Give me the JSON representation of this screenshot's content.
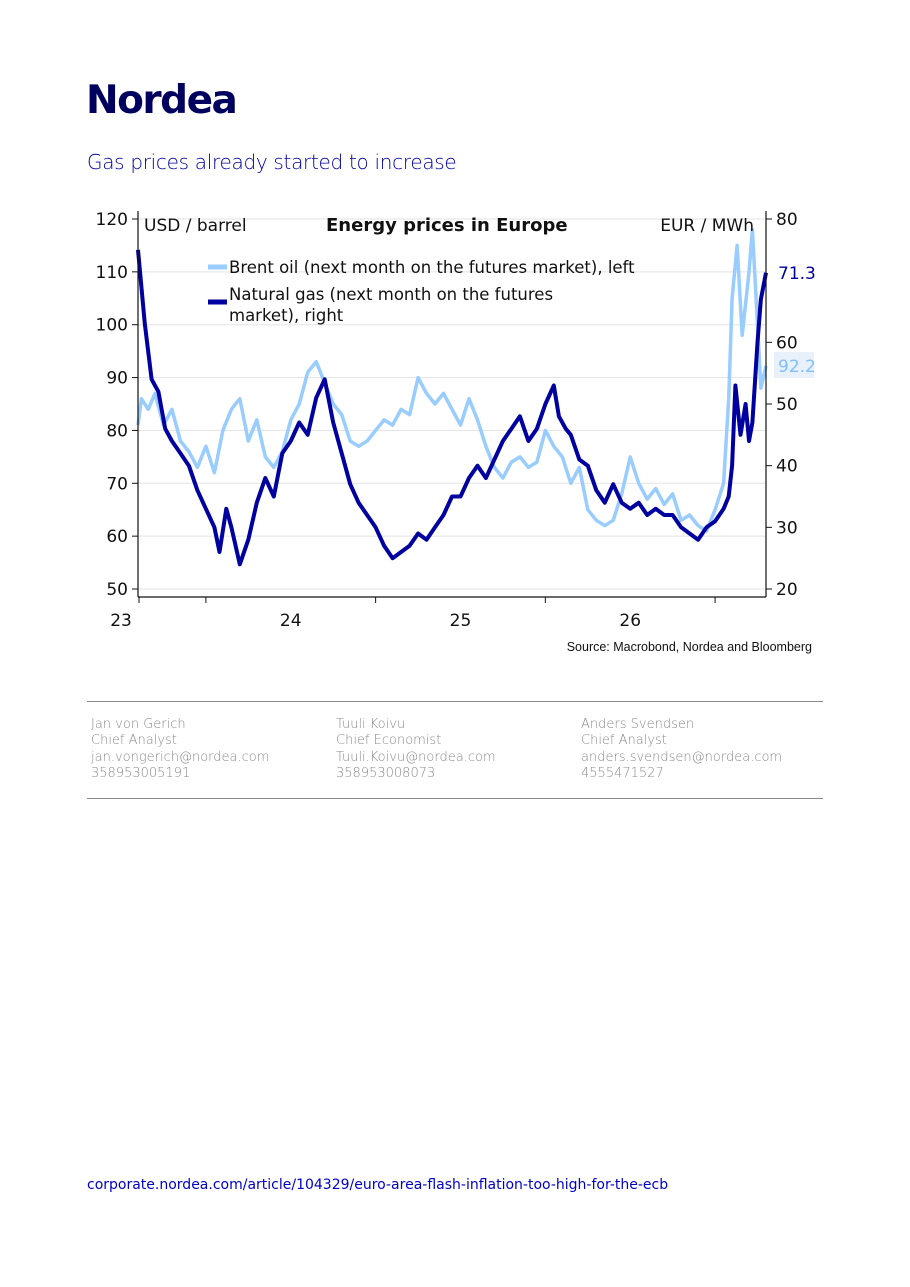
{
  "brand": {
    "logo_text": "Nordea",
    "color": "#00005e"
  },
  "subtitle": "Gas prices already started to increase",
  "chart_data": {
    "type": "line",
    "title": "Energy prices in Europe",
    "left_unit": "USD / barrel",
    "right_unit": "EUR / MWh",
    "source": "Source: Macrobond, Nordea and Bloomberg",
    "x_tick_labels": [
      "23",
      "24",
      "25",
      "26"
    ],
    "x_range": [
      2022.6,
      2026.3
    ],
    "left_axis": {
      "range": [
        50,
        120
      ],
      "ticks": [
        50,
        60,
        70,
        80,
        90,
        100,
        110,
        120
      ]
    },
    "right_axis": {
      "range": [
        20,
        80
      ],
      "ticks": [
        20,
        30,
        40,
        50,
        60,
        80
      ]
    },
    "legend_position": "top-center",
    "series": [
      {
        "name": "Brent oil (next month on the futures market), left",
        "axis": "left",
        "color": "#99ccff",
        "last_value_label": "92.2",
        "points": [
          [
            2022.6,
            81
          ],
          [
            2022.62,
            86
          ],
          [
            2022.66,
            84
          ],
          [
            2022.7,
            87
          ],
          [
            2022.75,
            81
          ],
          [
            2022.8,
            84
          ],
          [
            2022.85,
            78
          ],
          [
            2022.9,
            76
          ],
          [
            2022.95,
            73
          ],
          [
            2023.0,
            77
          ],
          [
            2023.05,
            72
          ],
          [
            2023.1,
            80
          ],
          [
            2023.15,
            84
          ],
          [
            2023.2,
            86
          ],
          [
            2023.25,
            78
          ],
          [
            2023.3,
            82
          ],
          [
            2023.35,
            75
          ],
          [
            2023.4,
            73
          ],
          [
            2023.45,
            76
          ],
          [
            2023.5,
            82
          ],
          [
            2023.55,
            85
          ],
          [
            2023.6,
            91
          ],
          [
            2023.65,
            93
          ],
          [
            2023.7,
            89
          ],
          [
            2023.75,
            85
          ],
          [
            2023.8,
            83
          ],
          [
            2023.85,
            78
          ],
          [
            2023.9,
            77
          ],
          [
            2023.95,
            78
          ],
          [
            2024.0,
            80
          ],
          [
            2024.05,
            82
          ],
          [
            2024.1,
            81
          ],
          [
            2024.15,
            84
          ],
          [
            2024.2,
            83
          ],
          [
            2024.25,
            90
          ],
          [
            2024.3,
            87
          ],
          [
            2024.35,
            85
          ],
          [
            2024.4,
            87
          ],
          [
            2024.45,
            84
          ],
          [
            2024.5,
            81
          ],
          [
            2024.55,
            86
          ],
          [
            2024.6,
            82
          ],
          [
            2024.65,
            77
          ],
          [
            2024.7,
            73
          ],
          [
            2024.75,
            71
          ],
          [
            2024.8,
            74
          ],
          [
            2024.85,
            75
          ],
          [
            2024.9,
            73
          ],
          [
            2024.95,
            74
          ],
          [
            2025.0,
            80
          ],
          [
            2025.05,
            77
          ],
          [
            2025.1,
            75
          ],
          [
            2025.15,
            70
          ],
          [
            2025.2,
            73
          ],
          [
            2025.25,
            65
          ],
          [
            2025.3,
            63
          ],
          [
            2025.35,
            62
          ],
          [
            2025.4,
            63
          ],
          [
            2025.45,
            68
          ],
          [
            2025.5,
            75
          ],
          [
            2025.55,
            70
          ],
          [
            2025.6,
            67
          ],
          [
            2025.65,
            69
          ],
          [
            2025.7,
            66
          ],
          [
            2025.75,
            68
          ],
          [
            2025.8,
            63
          ],
          [
            2025.85,
            64
          ],
          [
            2025.9,
            62
          ],
          [
            2025.95,
            61
          ],
          [
            2026.0,
            65
          ],
          [
            2026.05,
            70
          ],
          [
            2026.08,
            86
          ],
          [
            2026.1,
            105
          ],
          [
            2026.13,
            115
          ],
          [
            2026.16,
            98
          ],
          [
            2026.2,
            110
          ],
          [
            2026.22,
            118
          ],
          [
            2026.25,
            100
          ],
          [
            2026.27,
            88
          ],
          [
            2026.3,
            92.2
          ]
        ]
      },
      {
        "name": "Natural gas (next month on the futures market), right",
        "axis": "right",
        "color": "#0000a0",
        "last_value_label": "71.3",
        "points": [
          [
            2022.6,
            75
          ],
          [
            2022.62,
            69
          ],
          [
            2022.64,
            63
          ],
          [
            2022.68,
            54
          ],
          [
            2022.72,
            52
          ],
          [
            2022.76,
            46
          ],
          [
            2022.8,
            44
          ],
          [
            2022.85,
            42
          ],
          [
            2022.9,
            40
          ],
          [
            2022.95,
            36
          ],
          [
            2023.0,
            33
          ],
          [
            2023.05,
            30
          ],
          [
            2023.08,
            26
          ],
          [
            2023.12,
            33
          ],
          [
            2023.15,
            30
          ],
          [
            2023.2,
            24
          ],
          [
            2023.25,
            28
          ],
          [
            2023.3,
            34
          ],
          [
            2023.35,
            38
          ],
          [
            2023.4,
            35
          ],
          [
            2023.45,
            42
          ],
          [
            2023.5,
            44
          ],
          [
            2023.55,
            47
          ],
          [
            2023.6,
            45
          ],
          [
            2023.65,
            51
          ],
          [
            2023.7,
            54
          ],
          [
            2023.75,
            47
          ],
          [
            2023.8,
            42
          ],
          [
            2023.85,
            37
          ],
          [
            2023.9,
            34
          ],
          [
            2023.95,
            32
          ],
          [
            2024.0,
            30
          ],
          [
            2024.05,
            27
          ],
          [
            2024.1,
            25
          ],
          [
            2024.15,
            26
          ],
          [
            2024.2,
            27
          ],
          [
            2024.25,
            29
          ],
          [
            2024.3,
            28
          ],
          [
            2024.35,
            30
          ],
          [
            2024.4,
            32
          ],
          [
            2024.45,
            35
          ],
          [
            2024.5,
            35
          ],
          [
            2024.55,
            38
          ],
          [
            2024.6,
            40
          ],
          [
            2024.65,
            38
          ],
          [
            2024.7,
            41
          ],
          [
            2024.75,
            44
          ],
          [
            2024.8,
            46
          ],
          [
            2024.85,
            48
          ],
          [
            2024.9,
            44
          ],
          [
            2024.95,
            46
          ],
          [
            2025.0,
            50
          ],
          [
            2025.05,
            53
          ],
          [
            2025.08,
            48
          ],
          [
            2025.12,
            46
          ],
          [
            2025.15,
            45
          ],
          [
            2025.2,
            41
          ],
          [
            2025.25,
            40
          ],
          [
            2025.3,
            36
          ],
          [
            2025.35,
            34
          ],
          [
            2025.4,
            37
          ],
          [
            2025.45,
            34
          ],
          [
            2025.5,
            33
          ],
          [
            2025.55,
            34
          ],
          [
            2025.6,
            32
          ],
          [
            2025.65,
            33
          ],
          [
            2025.7,
            32
          ],
          [
            2025.75,
            32
          ],
          [
            2025.8,
            30
          ],
          [
            2025.85,
            29
          ],
          [
            2025.9,
            28
          ],
          [
            2025.95,
            30
          ],
          [
            2026.0,
            31
          ],
          [
            2026.05,
            33
          ],
          [
            2026.08,
            35
          ],
          [
            2026.1,
            40
          ],
          [
            2026.12,
            53
          ],
          [
            2026.15,
            45
          ],
          [
            2026.18,
            50
          ],
          [
            2026.2,
            44
          ],
          [
            2026.22,
            47
          ],
          [
            2026.25,
            60
          ],
          [
            2026.27,
            67
          ],
          [
            2026.3,
            71.3
          ]
        ]
      }
    ]
  },
  "contacts": [
    {
      "name": "Jan von Gerich",
      "title": "Chief Analyst",
      "email": "jan.vongerich@nordea.com",
      "phone": "358953005191"
    },
    {
      "name": "Tuuli Koivu",
      "title": "Chief Economist",
      "email": "Tuuli.Koivu@nordea.com",
      "phone": "358953008073"
    },
    {
      "name": "Anders Svendsen",
      "title": "Chief Analyst",
      "email": "anders.svendsen@nordea.com",
      "phone": "4555471527"
    }
  ],
  "footer_link": "corporate.nordea.com/article/104329/euro-area-flash-inflation-too-high-for-the-ecb"
}
